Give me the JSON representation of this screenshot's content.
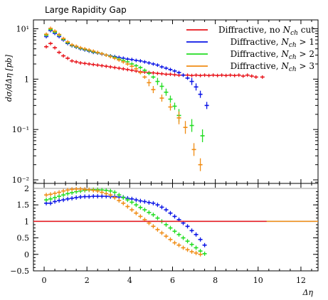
{
  "chart_data": {
    "type": "scatter",
    "title": "Large Rapidity Gap",
    "xlabel": "Δη",
    "ylabel": "dσ/dΔη [pb]",
    "xlim": [
      -0.5,
      12.8
    ],
    "legend_position": "top-right",
    "x_ticks": [
      "0",
      "2",
      "4",
      "6",
      "8",
      "10",
      "12"
    ],
    "top_panel": {
      "yscale": "log",
      "ylim": [
        0.0085,
        15
      ],
      "y_ticks": [
        "10⁻²",
        "10⁻¹",
        "1",
        "10¹"
      ],
      "x": [
        0.1,
        0.3,
        0.5,
        0.7,
        0.9,
        1.1,
        1.3,
        1.5,
        1.7,
        1.9,
        2.1,
        2.3,
        2.5,
        2.7,
        2.9,
        3.1,
        3.3,
        3.5,
        3.7,
        3.9,
        4.1,
        4.3,
        4.5,
        4.7,
        4.9,
        5.1,
        5.3,
        5.5,
        5.7,
        5.9,
        6.1,
        6.3,
        6.5,
        6.7,
        6.9,
        7.1,
        7.3,
        7.5,
        7.7
      ],
      "series": [
        {
          "name": "Diffractive, no N_ch cut",
          "color": "#e8151c",
          "values": [
            4.4,
            5.1,
            4.2,
            3.4,
            2.9,
            2.6,
            2.3,
            2.2,
            2.1,
            2.05,
            2.0,
            1.95,
            1.9,
            1.85,
            1.8,
            1.75,
            1.7,
            1.65,
            1.6,
            1.55,
            1.5,
            1.45,
            1.4,
            1.38,
            1.35,
            1.33,
            1.3,
            1.28,
            1.25,
            1.25,
            1.22,
            1.2,
            1.2,
            1.2,
            1.18,
            1.2,
            1.18,
            1.2,
            1.18,
            1.2,
            1.18,
            1.2,
            1.18,
            1.2,
            1.18,
            1.2,
            1.15,
            1.2,
            1.15,
            1.1,
            1.1
          ],
          "x_override": [
            0.1,
            0.3,
            0.5,
            0.7,
            0.9,
            1.1,
            1.3,
            1.5,
            1.7,
            1.9,
            2.1,
            2.3,
            2.5,
            2.7,
            2.9,
            3.1,
            3.3,
            3.5,
            3.7,
            3.9,
            4.1,
            4.3,
            4.5,
            4.7,
            4.9,
            5.1,
            5.3,
            5.5,
            5.7,
            5.9,
            6.1,
            6.3,
            6.5,
            6.7,
            6.9,
            7.1,
            7.3,
            7.5,
            7.7,
            7.9,
            8.1,
            8.3,
            8.5,
            8.7,
            8.9,
            9.1,
            9.3,
            9.5,
            9.7,
            9.9,
            10.2
          ]
        },
        {
          "name": "Diffractive, N_ch > 1",
          "color": "#0a14e6",
          "values": [
            7.0,
            9.2,
            8.1,
            7.0,
            6.0,
            5.1,
            4.6,
            4.3,
            4.0,
            3.8,
            3.6,
            3.4,
            3.3,
            3.15,
            3.0,
            2.9,
            2.8,
            2.7,
            2.6,
            2.5,
            2.45,
            2.35,
            2.3,
            2.2,
            2.1,
            2.0,
            1.9,
            1.75,
            1.65,
            1.55,
            1.45,
            1.35,
            1.2,
            1.05,
            0.9,
            0.7,
            0.5,
            0.3
          ],
          "x_override": [
            0.1,
            0.3,
            0.5,
            0.7,
            0.9,
            1.1,
            1.3,
            1.5,
            1.7,
            1.9,
            2.1,
            2.3,
            2.5,
            2.7,
            2.9,
            3.1,
            3.3,
            3.5,
            3.7,
            3.9,
            4.1,
            4.3,
            4.5,
            4.7,
            4.9,
            5.1,
            5.3,
            5.5,
            5.7,
            5.9,
            6.1,
            6.3,
            6.5,
            6.7,
            6.9,
            7.1,
            7.3,
            7.6
          ]
        },
        {
          "name": "Diffractive, N_ch > 2",
          "color": "#22dd22",
          "values": [
            7.5,
            9.7,
            8.6,
            7.5,
            6.2,
            5.3,
            4.7,
            4.4,
            4.1,
            3.9,
            3.7,
            3.5,
            3.35,
            3.2,
            3.0,
            2.85,
            2.7,
            2.5,
            2.35,
            2.2,
            2.0,
            1.85,
            1.7,
            1.5,
            1.3,
            1.1,
            0.9,
            0.72,
            0.55,
            0.4,
            0.29,
            0.19,
            0.12,
            0.075
          ],
          "x_override": [
            0.1,
            0.3,
            0.5,
            0.7,
            0.9,
            1.1,
            1.3,
            1.5,
            1.7,
            1.9,
            2.1,
            2.3,
            2.5,
            2.7,
            2.9,
            3.1,
            3.3,
            3.5,
            3.7,
            3.9,
            4.1,
            4.3,
            4.5,
            4.7,
            4.9,
            5.1,
            5.3,
            5.5,
            5.7,
            5.9,
            6.1,
            6.3,
            6.9,
            7.4
          ]
        },
        {
          "name": "Diffractive, N_ch > 3",
          "color": "#f08c14",
          "values": [
            7.8,
            10.2,
            9.0,
            7.7,
            6.4,
            5.5,
            4.8,
            4.5,
            4.2,
            4.0,
            3.8,
            3.6,
            3.4,
            3.2,
            3.0,
            2.8,
            2.6,
            2.4,
            2.2,
            2.0,
            1.8,
            1.6,
            1.35,
            1.1,
            0.85,
            0.62,
            0.42,
            0.28,
            0.17,
            0.11,
            0.04,
            0.02
          ],
          "x_override": [
            0.1,
            0.3,
            0.5,
            0.7,
            0.9,
            1.1,
            1.3,
            1.5,
            1.7,
            1.9,
            2.1,
            2.3,
            2.5,
            2.7,
            2.9,
            3.1,
            3.3,
            3.5,
            3.7,
            3.9,
            4.1,
            4.3,
            4.5,
            4.7,
            4.9,
            5.1,
            5.5,
            5.9,
            6.3,
            6.6,
            7.0,
            7.3
          ]
        }
      ]
    },
    "ratio_panel": {
      "ylim": [
        -0.5,
        2.15
      ],
      "y_ticks": [
        "−0.5",
        "0",
        "0.5",
        "1",
        "1.5",
        "2"
      ],
      "reference_line": 1,
      "series": [
        {
          "name": "Diffractive, N_ch > 1",
          "color": "#0a14e6",
          "x": [
            0.1,
            0.3,
            0.5,
            0.7,
            0.9,
            1.1,
            1.3,
            1.5,
            1.7,
            1.9,
            2.1,
            2.3,
            2.5,
            2.7,
            2.9,
            3.1,
            3.3,
            3.5,
            3.7,
            3.9,
            4.1,
            4.3,
            4.5,
            4.7,
            4.9,
            5.1,
            5.3,
            5.5,
            5.7,
            5.9,
            6.1,
            6.3,
            6.5,
            6.7,
            6.9,
            7.1,
            7.3,
            7.5
          ],
          "values": [
            1.55,
            1.55,
            1.6,
            1.63,
            1.65,
            1.68,
            1.7,
            1.72,
            1.74,
            1.75,
            1.75,
            1.76,
            1.76,
            1.76,
            1.76,
            1.75,
            1.75,
            1.74,
            1.73,
            1.7,
            1.68,
            1.65,
            1.62,
            1.6,
            1.57,
            1.55,
            1.5,
            1.43,
            1.35,
            1.25,
            1.15,
            1.05,
            0.95,
            0.85,
            0.72,
            0.6,
            0.45,
            0.28
          ]
        },
        {
          "name": "Diffractive, N_ch > 2",
          "color": "#22dd22",
          "x": [
            0.1,
            0.3,
            0.5,
            0.7,
            0.9,
            1.1,
            1.3,
            1.5,
            1.7,
            1.9,
            2.1,
            2.3,
            2.5,
            2.7,
            2.9,
            3.1,
            3.3,
            3.5,
            3.7,
            3.9,
            4.1,
            4.3,
            4.5,
            4.7,
            4.9,
            5.1,
            5.3,
            5.5,
            5.7,
            5.9,
            6.1,
            6.3,
            6.5,
            6.7,
            6.9,
            7.1,
            7.3,
            7.5
          ],
          "values": [
            1.65,
            1.68,
            1.72,
            1.76,
            1.8,
            1.84,
            1.87,
            1.9,
            1.92,
            1.94,
            1.95,
            1.96,
            1.96,
            1.95,
            1.94,
            1.92,
            1.88,
            1.8,
            1.72,
            1.65,
            1.58,
            1.5,
            1.42,
            1.35,
            1.27,
            1.2,
            1.1,
            1.0,
            0.9,
            0.8,
            0.7,
            0.6,
            0.5,
            0.4,
            0.3,
            0.2,
            0.1,
            0.02
          ]
        },
        {
          "name": "Diffractive, N_ch > 3",
          "color": "#f08c14",
          "x": [
            0.1,
            0.3,
            0.5,
            0.7,
            0.9,
            1.1,
            1.3,
            1.5,
            1.7,
            1.9,
            2.1,
            2.3,
            2.5,
            2.7,
            2.9,
            3.1,
            3.3,
            3.5,
            3.7,
            3.9,
            4.1,
            4.3,
            4.5,
            4.7,
            4.9,
            5.1,
            5.3,
            5.5,
            5.7,
            5.9,
            6.1,
            6.3,
            6.5,
            6.7,
            6.9,
            7.1,
            7.3
          ],
          "values": [
            1.8,
            1.82,
            1.85,
            1.88,
            1.92,
            1.95,
            1.97,
            1.98,
            1.98,
            1.97,
            1.96,
            1.94,
            1.92,
            1.88,
            1.84,
            1.8,
            1.72,
            1.63,
            1.55,
            1.45,
            1.35,
            1.25,
            1.15,
            1.05,
            0.95,
            0.85,
            0.75,
            0.65,
            0.55,
            0.45,
            0.35,
            0.28,
            0.2,
            0.14,
            0.08,
            0.04,
            0.0
          ]
        },
        {
          "name": "Diffractive, no N_ch cut",
          "color": "#e8151c",
          "x": [
            -0.5,
            10.4
          ],
          "values": [
            1.0,
            1.0
          ]
        },
        {
          "name": "Diffractive, N_ch > 3 (tail)",
          "color": "#f08c14",
          "x": [
            10.4,
            12.8
          ],
          "values": [
            1.0,
            1.0
          ]
        }
      ]
    }
  }
}
